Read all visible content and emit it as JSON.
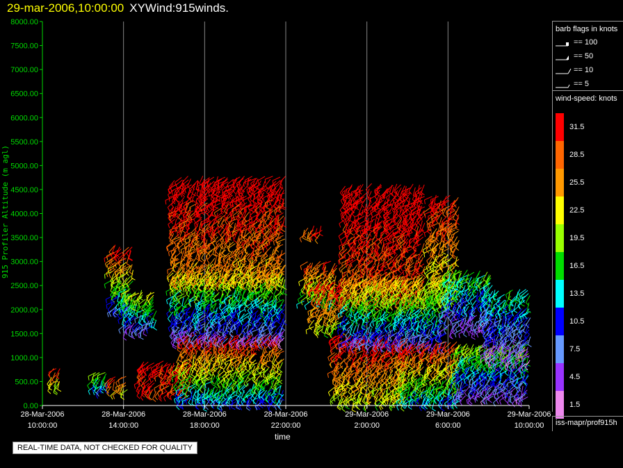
{
  "header": {
    "datetime": "29-mar-2006,10:00:00",
    "title": "XYWind:915winds."
  },
  "footer": {
    "quality_notice": "REAL-TIME DATA, NOT CHECKED FOR QUALITY",
    "source": "iss-mapr/prof915h"
  },
  "legend": {
    "barb_title": "barb flags in knots",
    "barbs": [
      {
        "label": "== 100",
        "kind": "flag"
      },
      {
        "label": "== 50",
        "kind": "pennant"
      },
      {
        "label": "== 10",
        "kind": "full"
      },
      {
        "label": "== 5",
        "kind": "half"
      }
    ],
    "speed_title": "wind-speed: knots",
    "speed_scale": [
      {
        "label": "31.5",
        "color": "#ff0000"
      },
      {
        "label": "28.5",
        "color": "#ff6600"
      },
      {
        "label": "25.5",
        "color": "#ff9900"
      },
      {
        "label": "22.5",
        "color": "#ffff00"
      },
      {
        "label": "19.5",
        "color": "#99ff00"
      },
      {
        "label": "16.5",
        "color": "#00dd00"
      },
      {
        "label": "13.5",
        "color": "#00ffff"
      },
      {
        "label": "10.5",
        "color": "#0000ff"
      },
      {
        "label": "7.5",
        "color": "#6699ff"
      },
      {
        "label": "4.5",
        "color": "#9933ff"
      },
      {
        "label": "1.5",
        "color": "#ee88ee"
      }
    ]
  },
  "chart_data": {
    "type": "scatter",
    "mark": "wind-barb",
    "ylabel": "915 Profiler Altitude (m agl)",
    "xlabel": "time",
    "ylim": [
      0,
      8000
    ],
    "yticks": [
      "0.00",
      "500.00",
      "1000.00",
      "1500.00",
      "2000.00",
      "2500.00",
      "3000.00",
      "3500.00",
      "4000.00",
      "4500.00",
      "5000.00",
      "5500.00",
      "6000.00",
      "6500.00",
      "7000.00",
      "7500.00",
      "8000.00"
    ],
    "xlim_hours": [
      0,
      24
    ],
    "xticks": [
      {
        "date": "28-Mar-2006",
        "time": "10:00:00"
      },
      {
        "date": "28-Mar-2006",
        "time": "14:00:00"
      },
      {
        "date": "28-Mar-2006",
        "time": "18:00:00"
      },
      {
        "date": "28-Mar-2006",
        "time": "22:00:00"
      },
      {
        "date": "29-Mar-2006",
        "time": "2:00:00"
      },
      {
        "date": "29-Mar-2006",
        "time": "6:00:00"
      },
      {
        "date": "29-Mar-2006",
        "time": "10:00:00"
      }
    ],
    "grid": "vertical",
    "clusters": [
      {
        "t": [
          0.5,
          1.0
        ],
        "z": [
          450,
          750
        ],
        "speed": [
          20,
          29
        ]
      },
      {
        "t": [
          2.6,
          3.3
        ],
        "z": [
          350,
          750
        ],
        "speed": [
          10,
          20
        ]
      },
      {
        "t": [
          3.4,
          4.2
        ],
        "z": [
          350,
          600
        ],
        "speed": [
          24,
          30
        ]
      },
      {
        "t": [
          3.5,
          4.4
        ],
        "z": [
          2000,
          3350
        ],
        "speed": [
          9,
          32
        ]
      },
      {
        "t": [
          4.1,
          5.6
        ],
        "z": [
          1600,
          2400
        ],
        "speed": [
          6,
          22
        ]
      },
      {
        "t": [
          4.9,
          7.4
        ],
        "z": [
          300,
          900
        ],
        "speed": [
          29,
          33
        ]
      },
      {
        "t": [
          6.8,
          12.0
        ],
        "z": [
          100,
          1500
        ],
        "speed": [
          10,
          33
        ]
      },
      {
        "t": [
          6.5,
          12.0
        ],
        "z": [
          1400,
          2800
        ],
        "speed": [
          5,
          22
        ]
      },
      {
        "t": [
          6.5,
          12.0
        ],
        "z": [
          2600,
          4800
        ],
        "speed": [
          24,
          35
        ]
      },
      {
        "t": [
          13.0,
          13.8
        ],
        "z": [
          3600,
          3750
        ],
        "speed": [
          28,
          32
        ]
      },
      {
        "t": [
          13.0,
          14.6
        ],
        "z": [
          2200,
          3000
        ],
        "speed": [
          16,
          30
        ]
      },
      {
        "t": [
          13.4,
          15.0
        ],
        "z": [
          1600,
          2600
        ],
        "speed": [
          20,
          33
        ]
      },
      {
        "t": [
          14.5,
          18.0
        ],
        "z": [
          100,
          1500
        ],
        "speed": [
          20,
          34
        ]
      },
      {
        "t": [
          15.0,
          18.8
        ],
        "z": [
          2200,
          4600
        ],
        "speed": [
          27,
          35
        ]
      },
      {
        "t": [
          15.0,
          20.0
        ],
        "z": [
          1300,
          2700
        ],
        "speed": [
          6,
          25
        ]
      },
      {
        "t": [
          17.8,
          20.5
        ],
        "z": [
          100,
          1300
        ],
        "speed": [
          12,
          31
        ]
      },
      {
        "t": [
          19.2,
          20.5
        ],
        "z": [
          2200,
          4400
        ],
        "speed": [
          18,
          33
        ]
      },
      {
        "t": [
          20.0,
          22.2
        ],
        "z": [
          1600,
          2800
        ],
        "speed": [
          4,
          18
        ]
      },
      {
        "t": [
          20.5,
          24.0
        ],
        "z": [
          200,
          1300
        ],
        "speed": [
          5,
          20
        ]
      },
      {
        "t": [
          22.0,
          24.0
        ],
        "z": [
          900,
          2400
        ],
        "speed": [
          3,
          16
        ]
      }
    ]
  }
}
